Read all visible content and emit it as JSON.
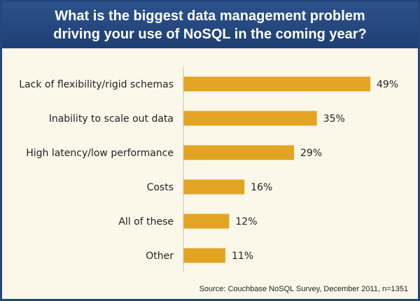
{
  "colors": {
    "header_bg": "#24467c",
    "panel_bg": "#fbf8ea",
    "bar": "#e3a424",
    "text": "#222222"
  },
  "chart_data": {
    "type": "bar",
    "orientation": "horizontal",
    "title": "What is the biggest data management problem\ndriving your use of NoSQL in the coming year?",
    "categories": [
      "Lack of flexibility/rigid schemas",
      "Inability to scale out data",
      "High latency/low performance",
      "Costs",
      "All of these",
      "Other"
    ],
    "values": [
      49,
      35,
      29,
      16,
      12,
      11
    ],
    "value_labels": [
      "49%",
      "35%",
      "29%",
      "16%",
      "12%",
      "11%"
    ],
    "unit": "%",
    "xlim": [
      0,
      49
    ],
    "grid": false,
    "legend": "none"
  },
  "source": "Source: Couchbase NoSQL Survey, December 2011, n=1351"
}
